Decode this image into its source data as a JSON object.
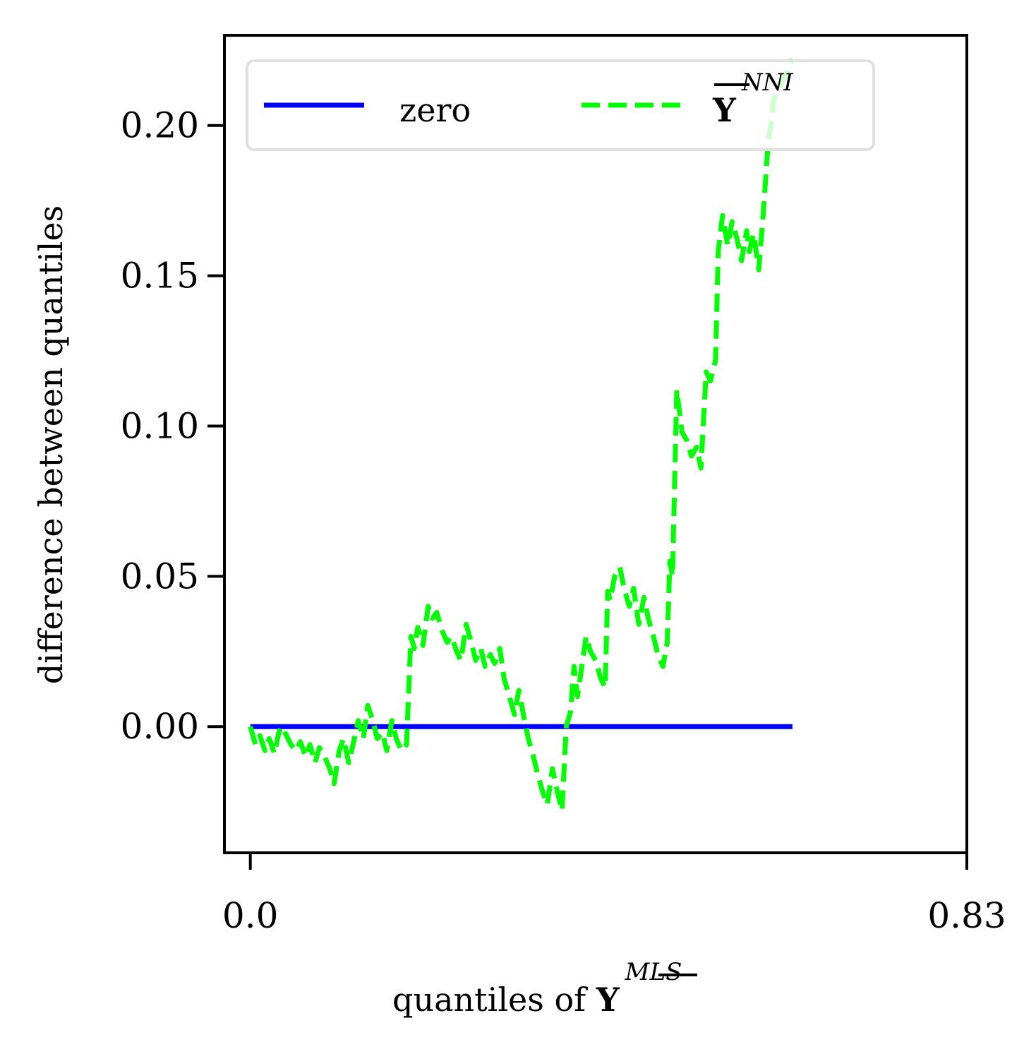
{
  "chart_data": {
    "type": "line",
    "title": "",
    "xlabel": {
      "prefix": "quantiles of ",
      "symbol": "Y",
      "superscript": "MLS"
    },
    "ylabel": "difference between quantiles",
    "xlim": [
      -0.03,
      0.83
    ],
    "ylim": [
      -0.042,
      0.23
    ],
    "x_ticks": [
      {
        "value": 0.0,
        "label": "0.0"
      },
      {
        "value": 0.83,
        "label": "0.83"
      }
    ],
    "y_ticks": [
      {
        "value": 0.0,
        "label": "0.00"
      },
      {
        "value": 0.05,
        "label": "0.05"
      },
      {
        "value": 0.1,
        "label": "0.10"
      },
      {
        "value": 0.15,
        "label": "0.15"
      },
      {
        "value": 0.2,
        "label": "0.20"
      }
    ],
    "legend": {
      "position": "top",
      "columns": 2
    },
    "series": [
      {
        "name": "zero",
        "color": "#0000ff",
        "style": "solid",
        "x": [
          0.0,
          0.628
        ],
        "y": [
          0.0,
          0.0
        ]
      },
      {
        "name": "NNI",
        "label_symbol": "Y",
        "label_superscript": "NNI",
        "color": "#00ff00",
        "style": "dashed",
        "x": [
          0.0,
          0.006,
          0.011,
          0.017,
          0.022,
          0.028,
          0.033,
          0.036,
          0.042,
          0.047,
          0.053,
          0.058,
          0.064,
          0.069,
          0.075,
          0.08,
          0.086,
          0.092,
          0.097,
          0.103,
          0.108,
          0.114,
          0.119,
          0.125,
          0.131,
          0.136,
          0.142,
          0.147,
          0.153,
          0.158,
          0.164,
          0.169,
          0.175,
          0.181,
          0.186,
          0.19,
          0.194,
          0.2,
          0.206,
          0.211,
          0.216,
          0.222,
          0.228,
          0.233,
          0.239,
          0.244,
          0.25,
          0.256,
          0.261,
          0.267,
          0.272,
          0.278,
          0.283,
          0.289,
          0.294,
          0.3,
          0.306,
          0.311,
          0.317,
          0.322,
          0.328,
          0.333,
          0.339,
          0.344,
          0.35,
          0.356,
          0.361,
          0.366,
          0.371,
          0.375,
          0.379,
          0.383,
          0.389,
          0.394,
          0.4,
          0.406,
          0.411,
          0.414,
          0.417,
          0.422,
          0.428,
          0.433,
          0.439,
          0.444,
          0.45,
          0.456,
          0.461,
          0.467,
          0.472,
          0.478,
          0.483,
          0.486,
          0.489,
          0.494,
          0.497,
          0.5,
          0.506,
          0.511,
          0.517,
          0.522,
          0.528,
          0.533,
          0.539,
          0.542,
          0.547,
          0.553,
          0.558,
          0.564,
          0.569,
          0.575,
          0.578,
          0.583,
          0.589,
          0.594,
          0.6,
          0.603,
          0.606,
          0.611,
          0.617,
          0.622,
          0.628
        ],
        "y": [
          0.0,
          -0.006,
          -0.003,
          -0.008,
          -0.004,
          -0.009,
          -0.002,
          0.0,
          -0.003,
          -0.006,
          -0.008,
          -0.005,
          -0.01,
          -0.006,
          -0.012,
          -0.007,
          -0.01,
          -0.014,
          -0.019,
          -0.008,
          -0.004,
          -0.012,
          -0.006,
          0.002,
          -0.004,
          0.007,
          0.002,
          -0.004,
          -0.002,
          -0.008,
          0.002,
          -0.004,
          -0.008,
          -0.006,
          0.03,
          0.026,
          0.033,
          0.027,
          0.04,
          0.036,
          0.038,
          0.032,
          0.028,
          0.03,
          0.025,
          0.022,
          0.034,
          0.028,
          0.022,
          0.026,
          0.02,
          0.024,
          0.021,
          0.026,
          0.016,
          0.01,
          0.004,
          0.012,
          0.003,
          -0.004,
          -0.01,
          -0.016,
          -0.022,
          -0.026,
          -0.014,
          -0.022,
          -0.028,
          0.0,
          0.005,
          0.02,
          0.01,
          0.018,
          0.03,
          0.025,
          0.022,
          0.016,
          0.013,
          0.045,
          0.042,
          0.05,
          0.053,
          0.046,
          0.04,
          0.046,
          0.034,
          0.043,
          0.036,
          0.03,
          0.024,
          0.02,
          0.028,
          0.055,
          0.05,
          0.112,
          0.105,
          0.098,
          0.095,
          0.09,
          0.093,
          0.086,
          0.118,
          0.115,
          0.122,
          0.158,
          0.17,
          0.16,
          0.168,
          0.162,
          0.155,
          0.165,
          0.158,
          0.164,
          0.152,
          0.17,
          0.195,
          0.2,
          0.208,
          0.212,
          0.215,
          0.218,
          0.222
        ]
      }
    ]
  }
}
